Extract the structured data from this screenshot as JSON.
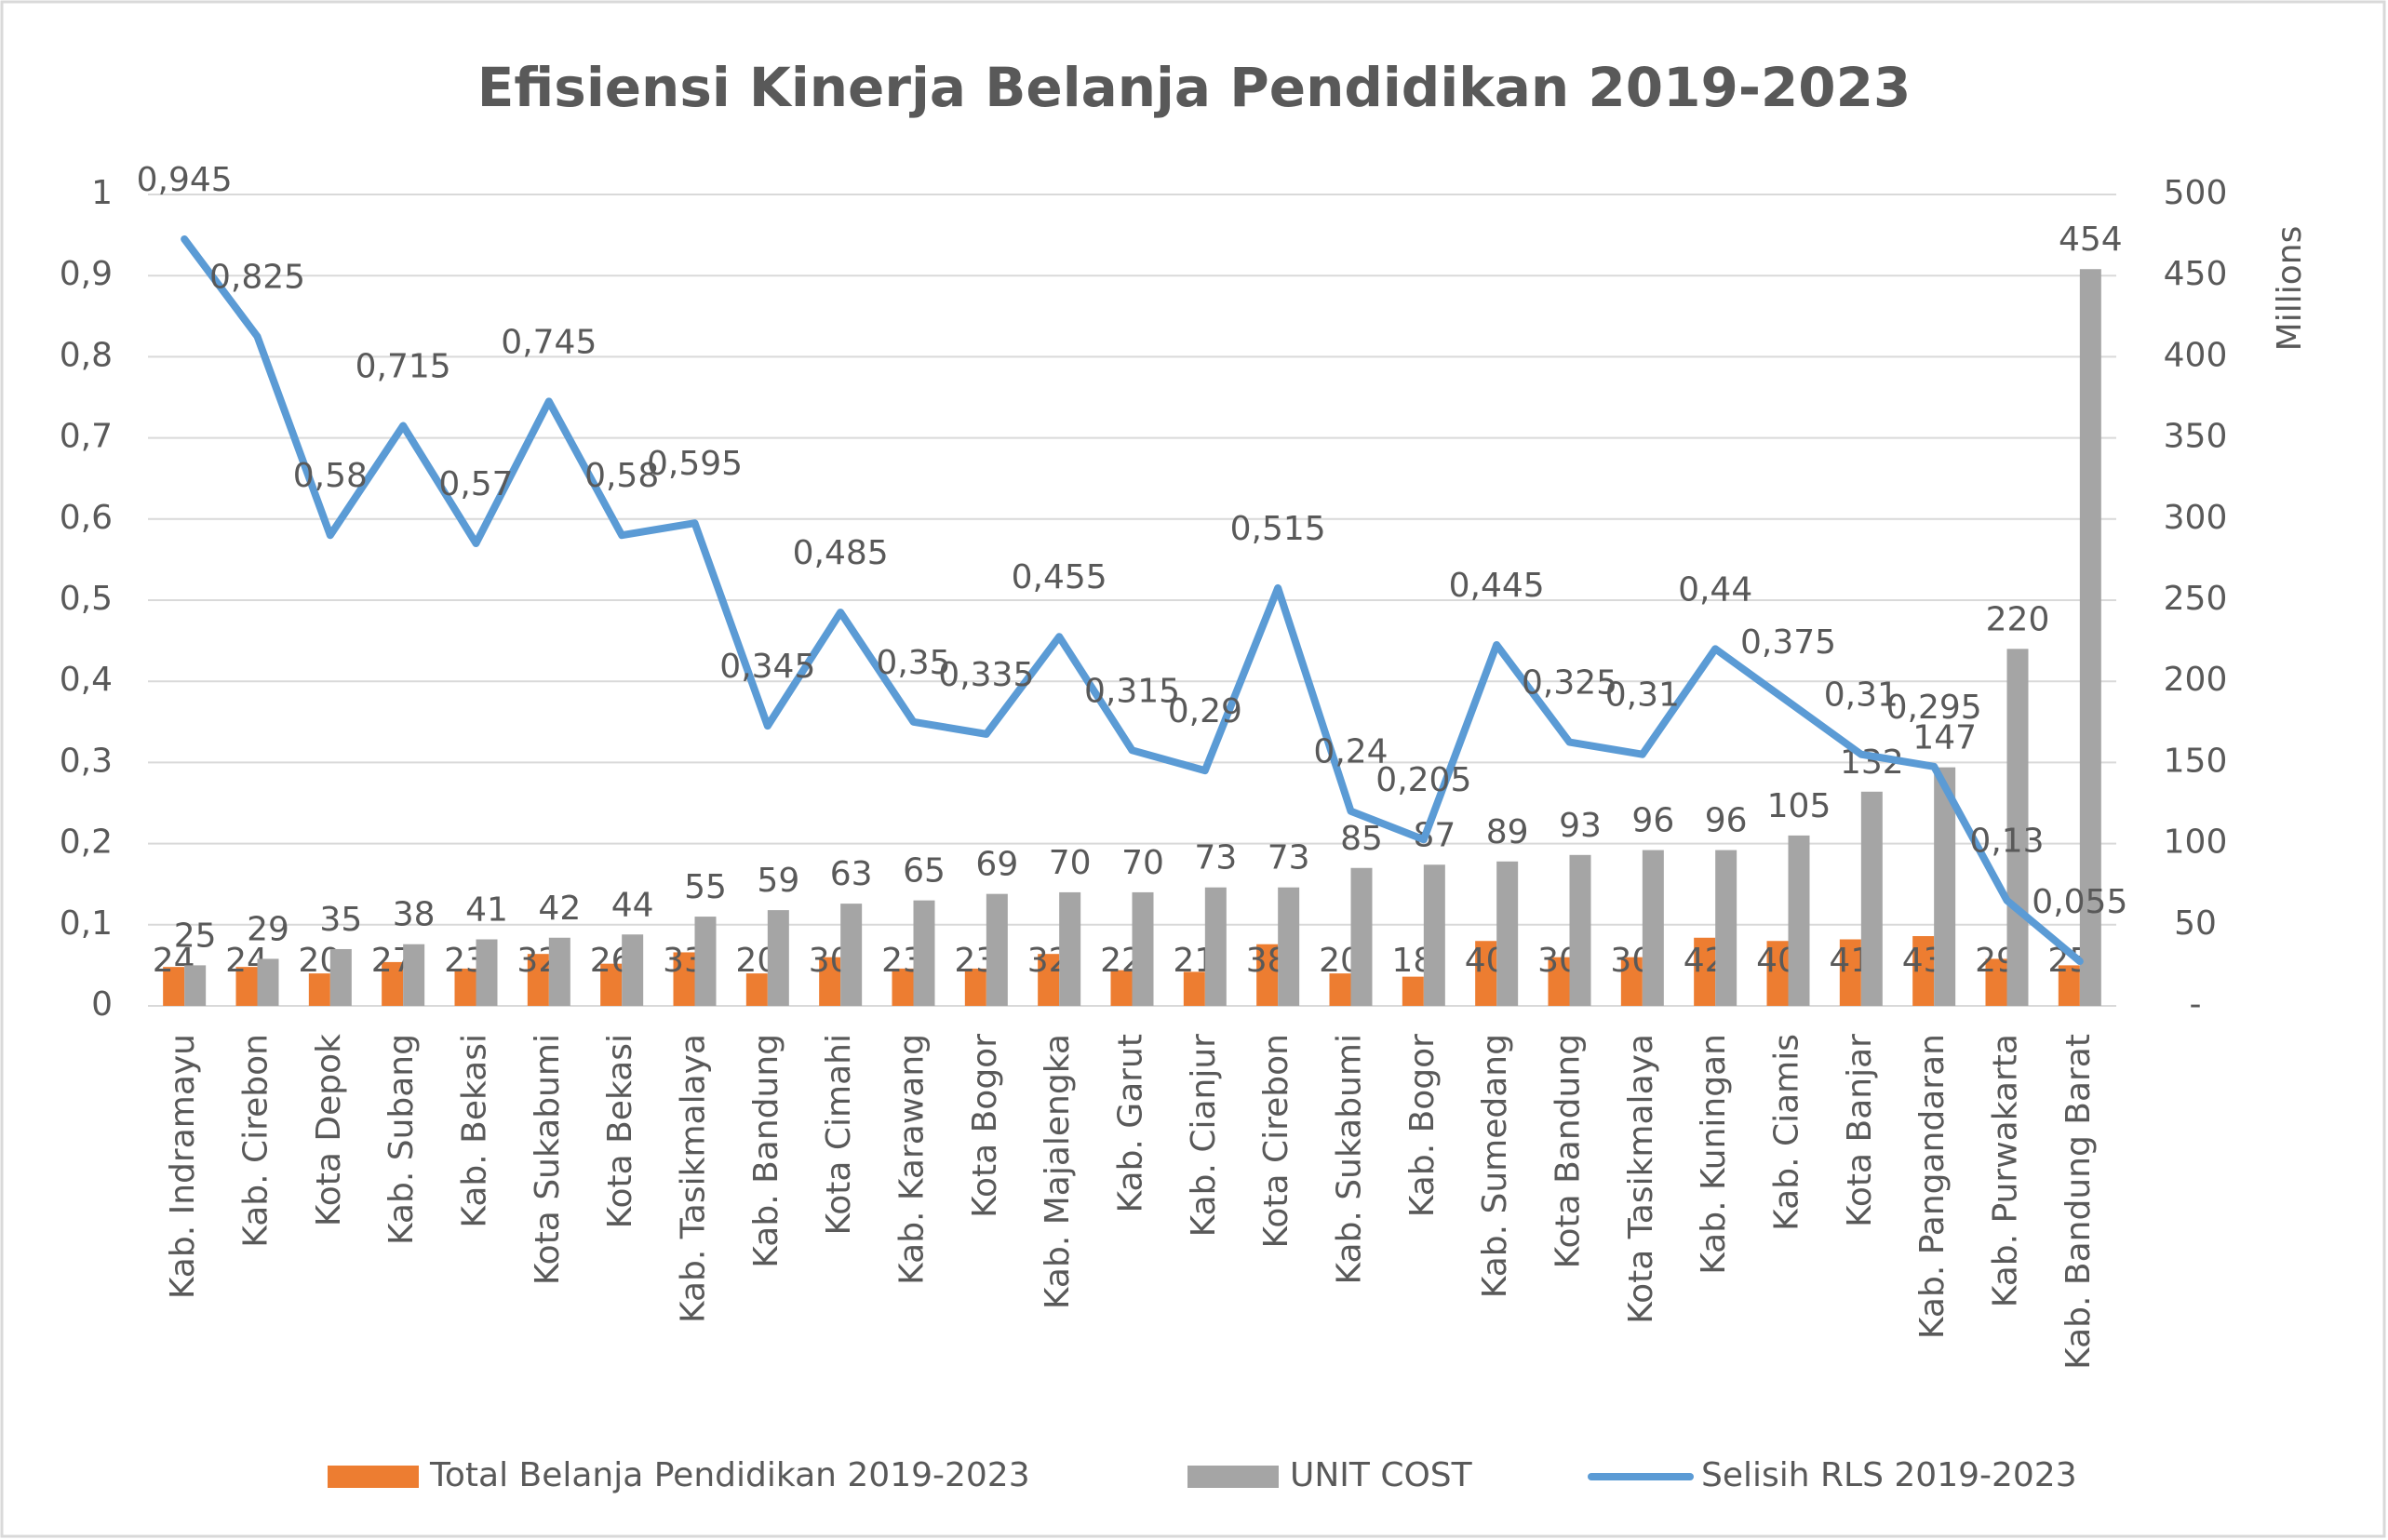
{
  "chart_data": {
    "type": "bar",
    "title": "Efisiensi Kinerja Belanja Pendidikan 2019-2023",
    "y2_label": "Millions",
    "categories": [
      "Kab. Indramayu",
      "Kab. Cirebon",
      "Kota Depok",
      "Kab. Subang",
      "Kab. Bekasi",
      "Kota Sukabumi",
      "Kota Bekasi",
      "Kab. Tasikmalaya",
      "Kab. Bandung",
      "Kota Cimahi",
      "Kab. Karawang",
      "Kota Bogor",
      "Kab. Majalengka",
      "Kab. Garut",
      "Kab. Cianjur",
      "Kota Cirebon",
      "Kab. Sukabumi",
      "Kab. Bogor",
      "Kab. Sumedang",
      "Kota Bandung",
      "Kota Tasikmalaya",
      "Kab. Kuningan",
      "Kab. Ciamis",
      "Kota Banjar",
      "Kab. Pangandaran",
      "Kab. Purwakarta",
      "Kab. Bandung Barat"
    ],
    "series": [
      {
        "name": "Total Belanja Pendidikan 2019-2023",
        "type": "bar",
        "axis": "y2",
        "color": "#ed7d31",
        "values": [
          24,
          24,
          20,
          27,
          23,
          32,
          26,
          33,
          20,
          30,
          23,
          23,
          32,
          22,
          21,
          38,
          20,
          18,
          40,
          30,
          30,
          42,
          40,
          41,
          43,
          29,
          25
        ]
      },
      {
        "name": "UNIT COST",
        "type": "bar",
        "axis": "y2",
        "color": "#a5a5a5",
        "values": [
          25,
          29,
          35,
          38,
          41,
          42,
          44,
          55,
          59,
          63,
          65,
          69,
          70,
          70,
          73,
          73,
          85,
          87,
          89,
          93,
          96,
          96,
          105,
          132,
          147,
          220,
          454
        ]
      },
      {
        "name": "Selisih RLS 2019-2023",
        "type": "line",
        "color": "#5b9bd5",
        "values": [
          0.945,
          0.825,
          0.58,
          0.715,
          0.57,
          0.745,
          0.58,
          0.595,
          0.345,
          0.485,
          0.35,
          0.335,
          0.455,
          0.315,
          0.29,
          0.515,
          0.24,
          0.205,
          0.445,
          0.325,
          0.31,
          0.44,
          0.375,
          0.31,
          0.295,
          0.13,
          0.055
        ],
        "value_labels": [
          "0,945",
          "0,825",
          "0,58",
          "0,715",
          "0,57",
          "0,745",
          "0,58",
          "0,595",
          "0,345",
          "0,485",
          "0,35",
          "0,335",
          "0,455",
          "0,315",
          "0,29",
          "0,515",
          "0,24",
          "0,205",
          "0,445",
          "0,325",
          "0,31",
          "0,44",
          "0,375",
          "0,31",
          "0,295",
          "0,13",
          "0,055"
        ]
      }
    ],
    "ylim": [
      0,
      1
    ],
    "yticks": [
      0,
      {
        "value": 0.1,
        "label": "0,1"
      },
      {
        "value": 0.2,
        "label": "0,2"
      },
      {
        "value": 0.3,
        "label": "0,3"
      },
      {
        "value": 0.4,
        "label": "0,4"
      },
      {
        "value": 0.5,
        "label": "0,5"
      },
      {
        "value": 0.6,
        "label": "0,6"
      },
      {
        "value": 0.7,
        "label": "0,7"
      },
      {
        "value": 0.8,
        "label": "0,8"
      },
      {
        "value": 0.9,
        "label": "0,9"
      },
      1
    ],
    "y2lim": [
      0,
      500
    ],
    "y2ticks": [
      {
        "value": 0,
        "label": "-"
      },
      50,
      100,
      150,
      200,
      250,
      300,
      350,
      400,
      450,
      500
    ],
    "grid": true,
    "legend": "bottom"
  }
}
